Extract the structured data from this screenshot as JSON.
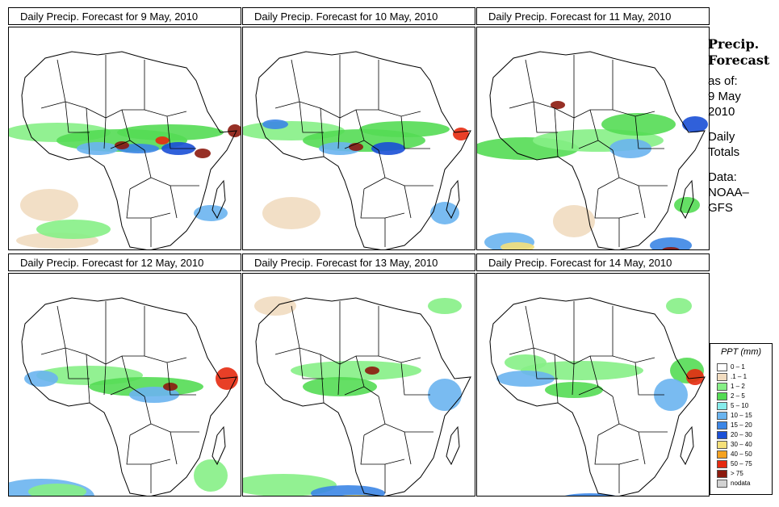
{
  "panels": [
    {
      "title": "Daily Precip. Forecast for  9 May, 2010"
    },
    {
      "title": "Daily Precip. Forecast for  10 May, 2010"
    },
    {
      "title": "Daily Precip. Forecast for  11 May, 2010"
    },
    {
      "title": "Daily Precip. Forecast for  12 May, 2010"
    },
    {
      "title": "Daily Precip. Forecast for  13 May, 2010"
    },
    {
      "title": "Daily Precip. Forecast for  14 May, 2010"
    }
  ],
  "sidebar": {
    "heading1": "Precip.",
    "heading2": "Forecast",
    "asof_label": "as of:",
    "date_line1": "9 May",
    "date_line2": "2010",
    "totals_line1": "Daily",
    "totals_line2": "Totals",
    "data_line1": "Data:",
    "data_line2": "NOAA–",
    "data_line3": "GFS"
  },
  "legend": {
    "title": "PPT (mm)",
    "items": [
      {
        "label": "0 – 1",
        "color": "#ffffff"
      },
      {
        "label": ".1 – 1",
        "color": "#f1dcc0"
      },
      {
        "label": "1 – 2",
        "color": "#86ef86"
      },
      {
        "label": "2 – 5",
        "color": "#54db54"
      },
      {
        "label": "5 – 10",
        "color": "#86ecec"
      },
      {
        "label": "10 – 15",
        "color": "#6ab4ef"
      },
      {
        "label": "15 – 20",
        "color": "#3c86e6"
      },
      {
        "label": "20 – 30",
        "color": "#1a4fd6"
      },
      {
        "label": "30 – 40",
        "color": "#f5e07a"
      },
      {
        "label": "40 – 50",
        "color": "#f5a220"
      },
      {
        "label": "50 – 75",
        "color": "#e52a10"
      },
      {
        "label": "> 75",
        "color": "#8c1a0e"
      },
      {
        "label": "nodata",
        "color": "#d2d2d2"
      }
    ]
  }
}
